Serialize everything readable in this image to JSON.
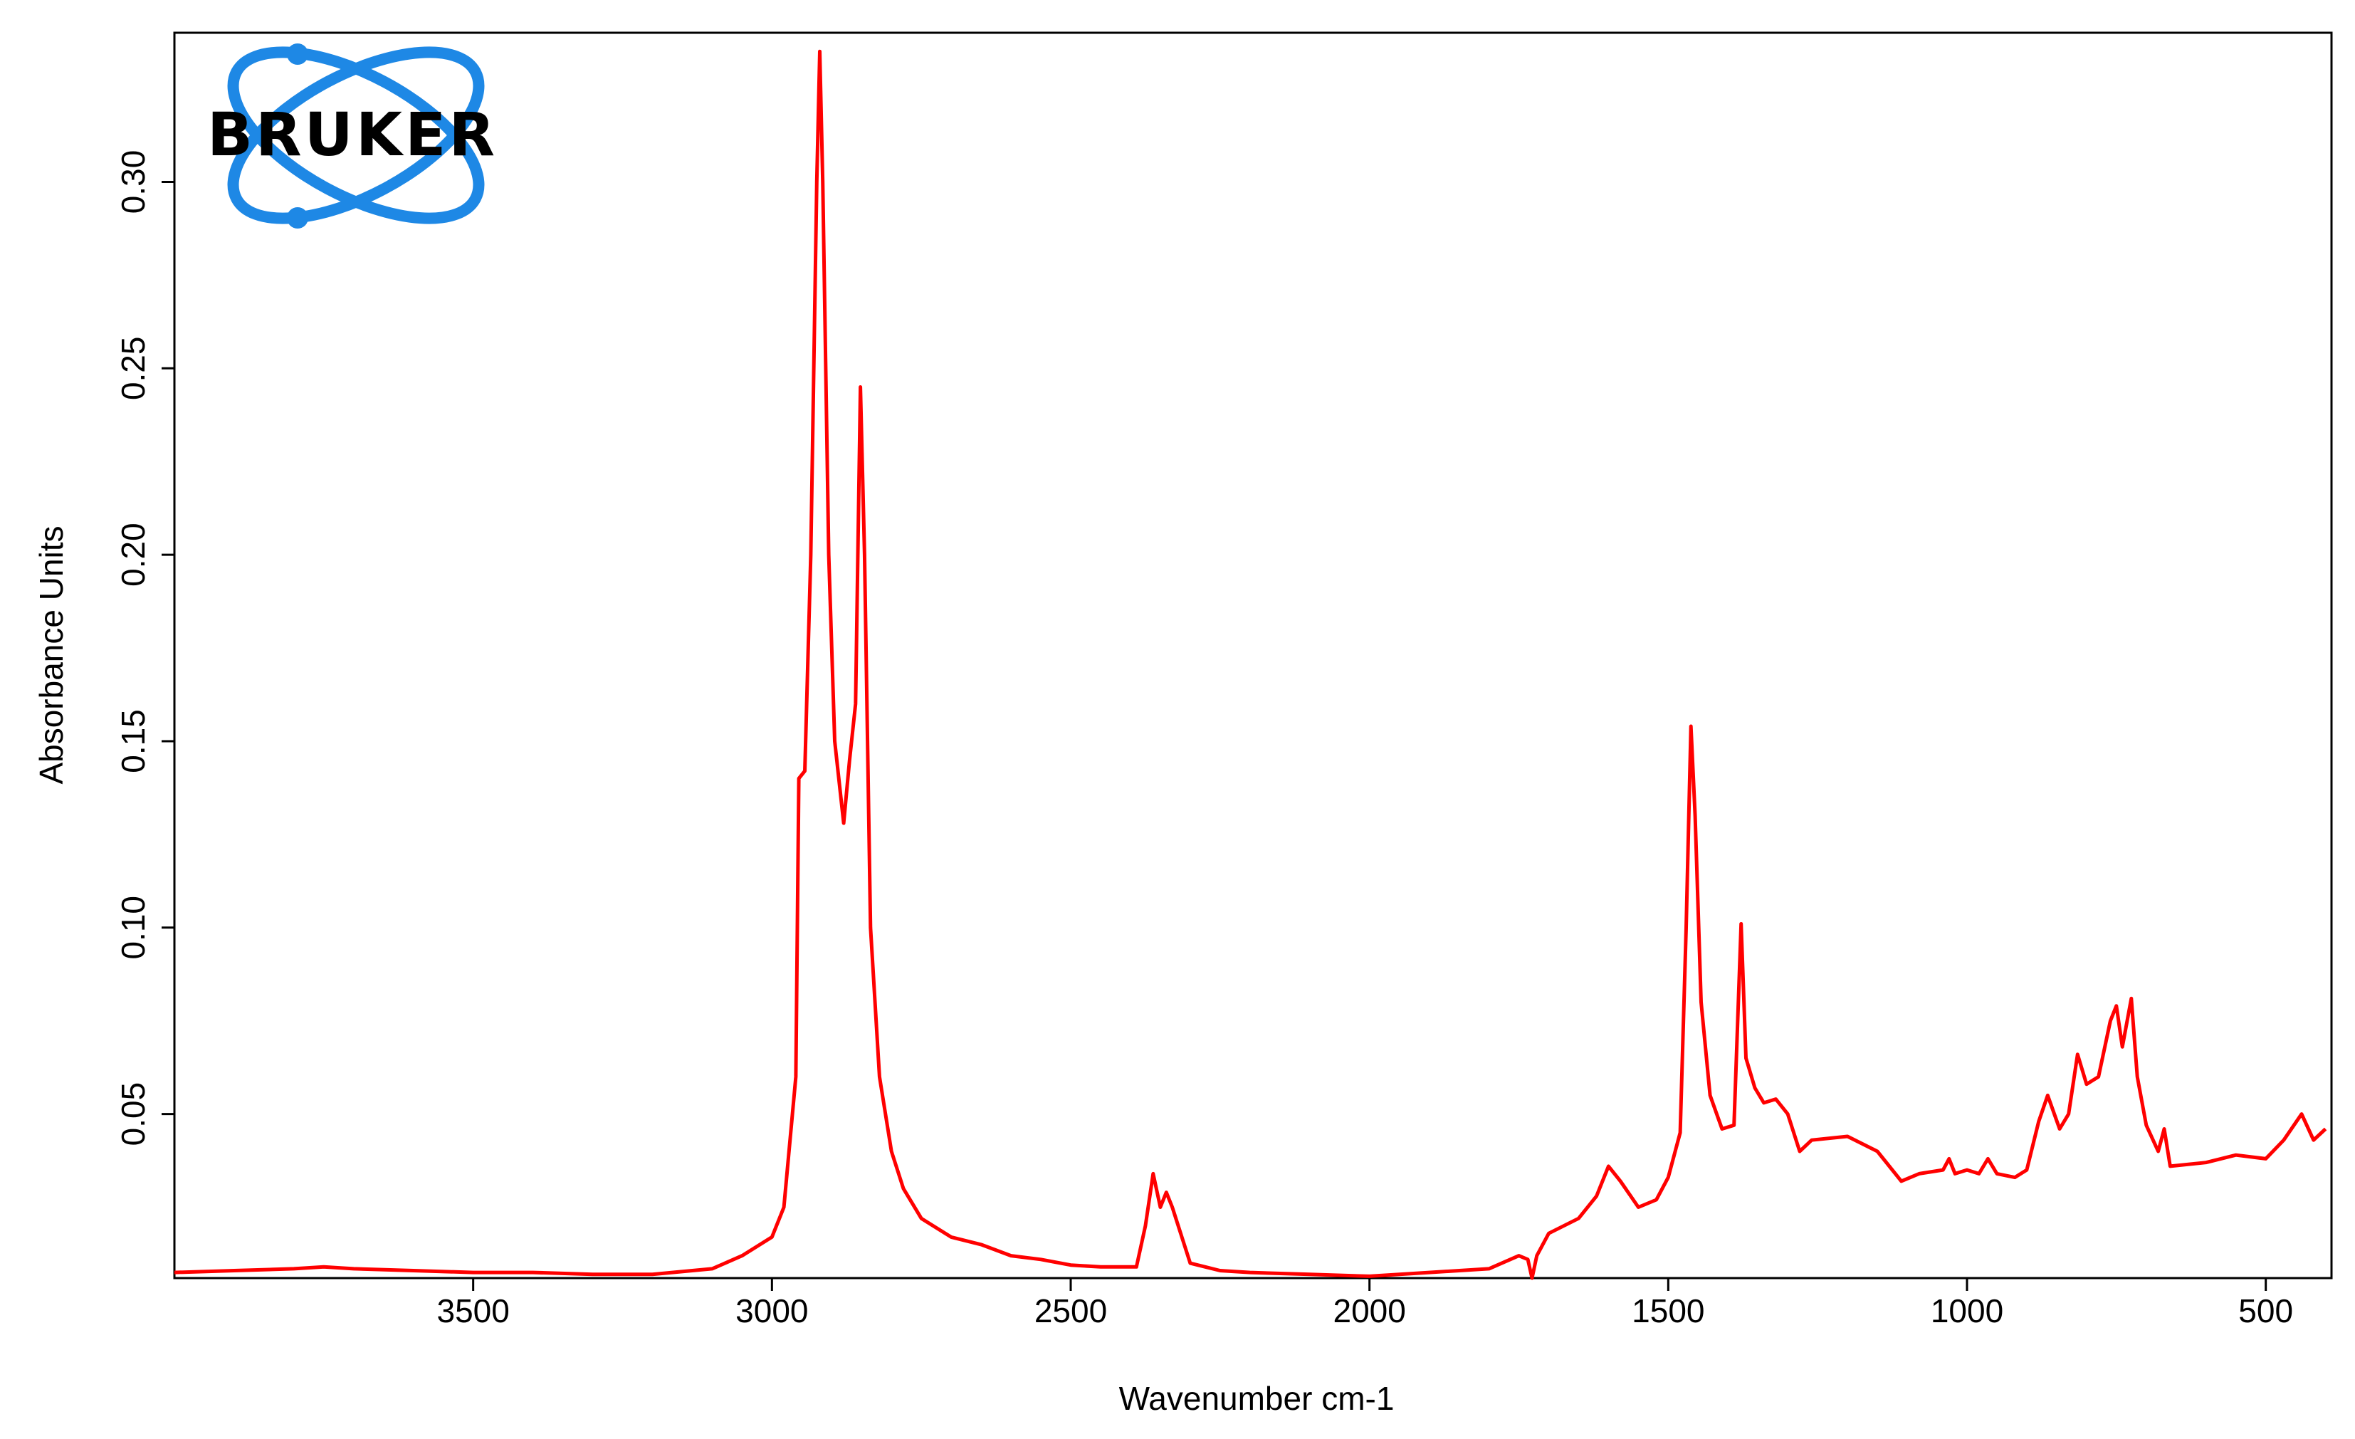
{
  "chart_data": {
    "type": "line",
    "logo_text": "BRUKER",
    "x_label": "Wavenumber cm-1",
    "y_label": "Absorbance Units",
    "xlim": [
      4000,
      390
    ],
    "ylim": [
      0.006,
      0.34
    ],
    "xticks": [
      3500,
      3000,
      2500,
      2000,
      1500,
      1000,
      500
    ],
    "yticks": [
      {
        "value": 0.05,
        "label": "0.05"
      },
      {
        "value": 0.1,
        "label": "0.10"
      },
      {
        "value": 0.15,
        "label": "0.15"
      },
      {
        "value": 0.2,
        "label": "0.20"
      },
      {
        "value": 0.25,
        "label": "0.25"
      },
      {
        "value": 0.3,
        "label": "0.30"
      }
    ],
    "color": "#ff0000",
    "x": [
      4000,
      3900,
      3800,
      3750,
      3700,
      3600,
      3500,
      3400,
      3300,
      3200,
      3100,
      3050,
      3000,
      2980,
      2960,
      2955,
      2945,
      2935,
      2925,
      2920,
      2915,
      2905,
      2895,
      2880,
      2870,
      2860,
      2852,
      2845,
      2835,
      2820,
      2800,
      2780,
      2750,
      2730,
      2700,
      2650,
      2600,
      2550,
      2500,
      2450,
      2390,
      2375,
      2362,
      2350,
      2340,
      2330,
      2300,
      2250,
      2200,
      2100,
      2000,
      1900,
      1800,
      1750,
      1735,
      1728,
      1720,
      1700,
      1650,
      1620,
      1600,
      1580,
      1550,
      1520,
      1500,
      1480,
      1470,
      1462,
      1455,
      1445,
      1430,
      1410,
      1390,
      1378,
      1370,
      1355,
      1340,
      1320,
      1300,
      1280,
      1260,
      1200,
      1150,
      1110,
      1080,
      1040,
      1030,
      1020,
      1000,
      980,
      965,
      950,
      920,
      900,
      880,
      865,
      845,
      830,
      815,
      800,
      780,
      760,
      750,
      740,
      725,
      715,
      700,
      680,
      670,
      660,
      600,
      550,
      500,
      470,
      440,
      420,
      400
    ],
    "values": [
      0.0075,
      0.008,
      0.0085,
      0.009,
      0.0085,
      0.008,
      0.0075,
      0.0075,
      0.007,
      0.007,
      0.0085,
      0.012,
      0.017,
      0.025,
      0.06,
      0.14,
      0.142,
      0.2,
      0.3,
      0.335,
      0.3,
      0.2,
      0.15,
      0.128,
      0.145,
      0.16,
      0.245,
      0.2,
      0.1,
      0.06,
      0.04,
      0.03,
      0.022,
      0.02,
      0.017,
      0.015,
      0.012,
      0.011,
      0.0095,
      0.009,
      0.009,
      0.02,
      0.034,
      0.025,
      0.029,
      0.025,
      0.01,
      0.008,
      0.0075,
      0.007,
      0.0065,
      0.0075,
      0.0085,
      0.012,
      0.011,
      0.006,
      0.012,
      0.018,
      0.022,
      0.028,
      0.036,
      0.032,
      0.025,
      0.027,
      0.033,
      0.045,
      0.1,
      0.154,
      0.13,
      0.08,
      0.055,
      0.046,
      0.047,
      0.101,
      0.065,
      0.057,
      0.053,
      0.054,
      0.05,
      0.04,
      0.043,
      0.044,
      0.04,
      0.032,
      0.034,
      0.035,
      0.038,
      0.034,
      0.035,
      0.034,
      0.038,
      0.034,
      0.033,
      0.035,
      0.048,
      0.055,
      0.046,
      0.05,
      0.066,
      0.058,
      0.06,
      0.075,
      0.079,
      0.068,
      0.081,
      0.06,
      0.047,
      0.04,
      0.046,
      0.036,
      0.037,
      0.039,
      0.038,
      0.043,
      0.05,
      0.043,
      0.046
    ]
  }
}
